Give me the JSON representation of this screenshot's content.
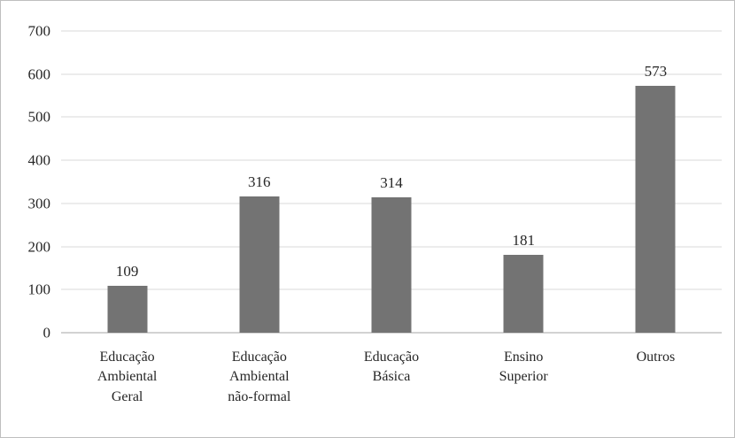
{
  "chart_data": {
    "type": "bar",
    "categories": [
      "Educação\nAmbiental\nGeral",
      "Educação\nAmbiental\nnão-formal",
      "Educação\nBásica",
      "Ensino\nSuperior",
      "Outros"
    ],
    "values": [
      109,
      316,
      314,
      181,
      573
    ],
    "title": "",
    "xlabel": "",
    "ylabel": "",
    "ylim": [
      0,
      700
    ],
    "yticks": [
      0,
      100,
      200,
      300,
      400,
      500,
      600,
      700
    ],
    "grid": true,
    "legend": false,
    "colors": {
      "bar": "#737373",
      "gridline": "#d9d9d9",
      "axis_line": "#a6a6a6",
      "text": "#262626",
      "frame_border": "#bfbfbf"
    }
  }
}
